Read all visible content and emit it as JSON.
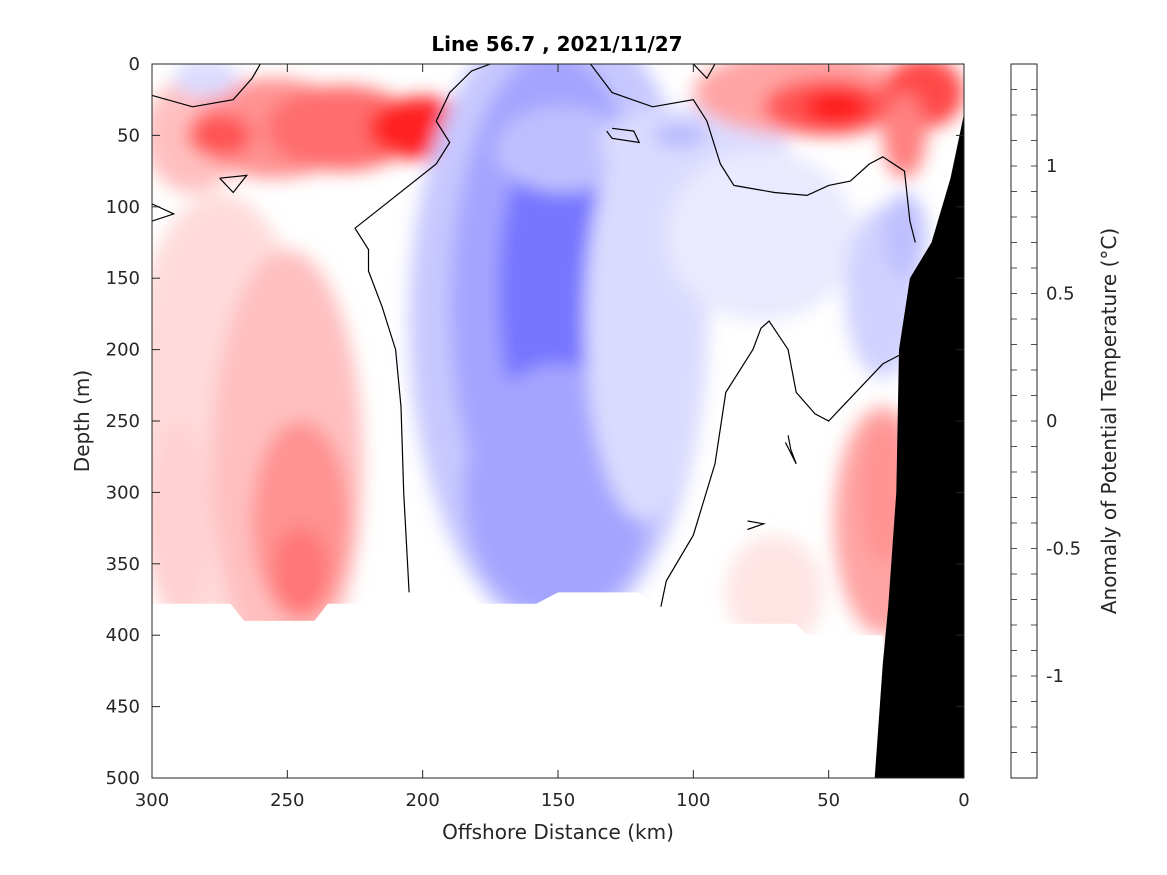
{
  "chart_data": {
    "type": "contour",
    "title": "Line 56.7 , 2021/11/27",
    "xlabel": "Offshore Distance (km)",
    "ylabel": "Depth (m)",
    "colorbar_label": "Anomaly of Potential Temperature (°C)",
    "xlim": [
      300,
      0
    ],
    "ylim": [
      0,
      500
    ],
    "x_reversed": true,
    "y_reversed": true,
    "x_ticks": [
      "300",
      "250",
      "200",
      "150",
      "100",
      "50",
      "0"
    ],
    "y_ticks": [
      "0",
      "50",
      "100",
      "150",
      "200",
      "250",
      "300",
      "350",
      "400",
      "450",
      "500"
    ],
    "colorbar_ticks": [
      "1",
      "0.5",
      "0",
      "-0.5",
      "-1"
    ],
    "color_range": [
      -1.4,
      1.4
    ],
    "contour_level_step": 0.1,
    "zero_contour": "black",
    "colors": {
      "positive": "#ff0000",
      "negative": "#0000ff",
      "neutral": "#ffffff",
      "bathymetry": "#000000"
    },
    "features": [
      {
        "kind": "warm core",
        "x_km": 200,
        "depth_m": 45,
        "anomaly": 1.3
      },
      {
        "kind": "warm core",
        "x_km": 50,
        "depth_m": 30,
        "anomaly": 1.3
      },
      {
        "kind": "warm core",
        "x_km": 15,
        "depth_m": 10,
        "anomaly": 1.2
      },
      {
        "kind": "warm",
        "x_km": 275,
        "depth_m": 50,
        "anomaly": 1.0
      },
      {
        "kind": "cold core",
        "x_km": 150,
        "depth_m": 160,
        "anomaly": -0.8
      },
      {
        "kind": "cold",
        "x_km": 150,
        "depth_m": 300,
        "anomaly": -0.6
      },
      {
        "kind": "cold",
        "x_km": 105,
        "depth_m": 50,
        "anomaly": -0.4
      },
      {
        "kind": "warm",
        "x_km": 245,
        "depth_m": 340,
        "anomaly": 0.8
      },
      {
        "kind": "warm",
        "x_km": 30,
        "depth_m": 320,
        "anomaly": 0.6
      }
    ]
  }
}
